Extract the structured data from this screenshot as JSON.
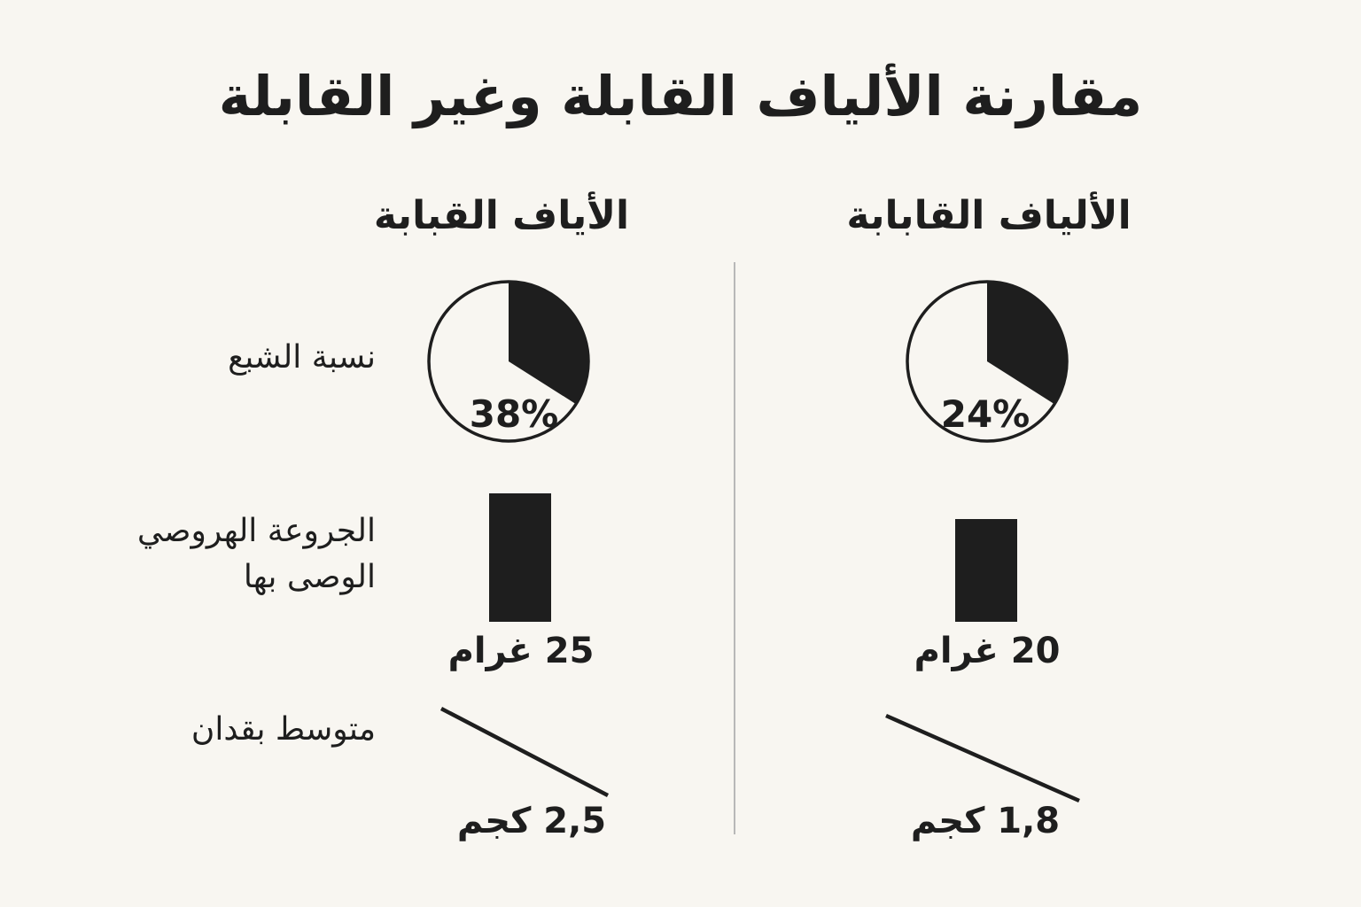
{
  "chart_data": {
    "type": "comparison",
    "title": "مقارنة الألياف القابلة وغير القابلة",
    "columns": [
      {
        "name": "الأياف القبابة",
        "satiety_percent": 38,
        "recommended_dose_g": 25,
        "recommended_dose_label": "25 غرام",
        "avg_loss_kg": 2.5,
        "avg_loss_label": "2,5 كجم"
      },
      {
        "name": "الألياف القابابة",
        "satiety_percent": 24,
        "recommended_dose_g": 20,
        "recommended_dose_label": "20 غرام",
        "avg_loss_kg": 1.8,
        "avg_loss_label": "1,8 كجم"
      }
    ],
    "rows": {
      "satiety": "نسبة الشبع",
      "dose_line1": "الجروعة الهروصي",
      "dose_line2": "الوصى بها",
      "loss": "متوسط بقدان"
    }
  }
}
